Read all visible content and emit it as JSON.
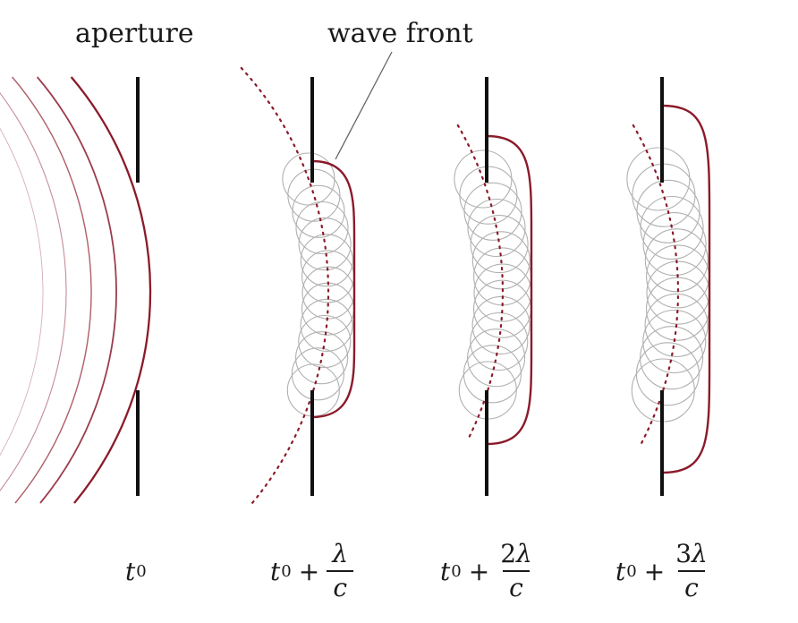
{
  "labels": {
    "aperture": "aperture",
    "wave_front": "wave front"
  },
  "times": [
    {
      "base": "t",
      "sub": "0",
      "plus": "",
      "num_coef": "",
      "num_sym": "",
      "den": ""
    },
    {
      "base": "t",
      "sub": "0",
      "plus": "+",
      "num_coef": "",
      "num_sym": "λ",
      "den": "c"
    },
    {
      "base": "t",
      "sub": "0",
      "plus": "+",
      "num_coef": "2",
      "num_sym": "λ",
      "den": "c"
    },
    {
      "base": "t",
      "sub": "0",
      "plus": "+",
      "num_coef": "3",
      "num_sym": "λ",
      "den": "c"
    }
  ],
  "colors": {
    "wave": "#8b1a2b",
    "barrier": "#111111",
    "wavelet": "#b0b0b0",
    "text": "#1a1a1a"
  }
}
